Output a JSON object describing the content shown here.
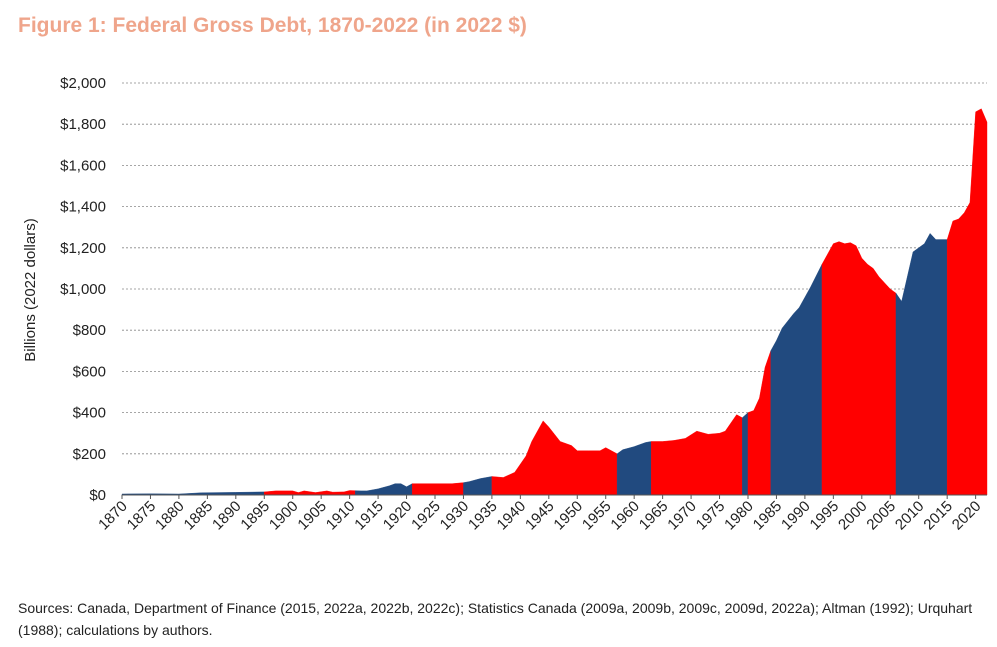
{
  "chart_data": {
    "type": "area",
    "title": "Figure 1: Federal Gross Debt, 1870-2022 (in 2022 $)",
    "xlabel": "",
    "ylabel": "Billions (2022 dollars)",
    "xlim": [
      1870,
      2022
    ],
    "ylim": [
      0,
      2000
    ],
    "yticks": [
      0,
      200,
      400,
      600,
      800,
      1000,
      1200,
      1400,
      1600,
      1800,
      2000
    ],
    "ytick_labels": [
      "$0",
      "$200",
      "$400",
      "$600",
      "$800",
      "$1,000",
      "$1,200",
      "$1,400",
      "$1,600",
      "$1,800",
      "$2,000"
    ],
    "xticks": [
      1870,
      1875,
      1880,
      1885,
      1890,
      1895,
      1900,
      1905,
      1910,
      1915,
      1920,
      1925,
      1930,
      1935,
      1940,
      1945,
      1950,
      1955,
      1960,
      1965,
      1970,
      1975,
      1980,
      1985,
      1990,
      1995,
      2000,
      2005,
      2010,
      2015,
      2020
    ],
    "grid": "horizontal-dashed",
    "legend": "none",
    "points": [
      [
        1870,
        5
      ],
      [
        1875,
        6
      ],
      [
        1880,
        5
      ],
      [
        1884,
        11
      ],
      [
        1890,
        13
      ],
      [
        1895,
        15
      ],
      [
        1897,
        20
      ],
      [
        1900,
        20
      ],
      [
        1901,
        12
      ],
      [
        1902,
        20
      ],
      [
        1904,
        12
      ],
      [
        1906,
        20
      ],
      [
        1907,
        14
      ],
      [
        1909,
        15
      ],
      [
        1910,
        22
      ],
      [
        1912,
        20
      ],
      [
        1913,
        20
      ],
      [
        1915,
        30
      ],
      [
        1917,
        45
      ],
      [
        1918,
        55
      ],
      [
        1919,
        55
      ],
      [
        1920,
        40
      ],
      [
        1921,
        55
      ],
      [
        1925,
        55
      ],
      [
        1928,
        55
      ],
      [
        1930,
        60
      ],
      [
        1931,
        65
      ],
      [
        1933,
        80
      ],
      [
        1935,
        90
      ],
      [
        1937,
        85
      ],
      [
        1939,
        110
      ],
      [
        1941,
        190
      ],
      [
        1942,
        260
      ],
      [
        1944,
        360
      ],
      [
        1945,
        330
      ],
      [
        1947,
        260
      ],
      [
        1949,
        240
      ],
      [
        1950,
        215
      ],
      [
        1952,
        215
      ],
      [
        1954,
        215
      ],
      [
        1955,
        230
      ],
      [
        1957,
        200
      ],
      [
        1958,
        220
      ],
      [
        1960,
        235
      ],
      [
        1962,
        255
      ],
      [
        1963,
        260
      ],
      [
        1965,
        260
      ],
      [
        1967,
        265
      ],
      [
        1969,
        275
      ],
      [
        1971,
        310
      ],
      [
        1973,
        295
      ],
      [
        1975,
        300
      ],
      [
        1976,
        310
      ],
      [
        1978,
        390
      ],
      [
        1979,
        375
      ],
      [
        1980,
        400
      ],
      [
        1981,
        410
      ],
      [
        1982,
        470
      ],
      [
        1983,
        620
      ],
      [
        1984,
        700
      ],
      [
        1985,
        750
      ],
      [
        1986,
        810
      ],
      [
        1988,
        880
      ],
      [
        1989,
        910
      ],
      [
        1990,
        960
      ],
      [
        1991,
        1010
      ],
      [
        1993,
        1120
      ],
      [
        1995,
        1220
      ],
      [
        1996,
        1230
      ],
      [
        1997,
        1220
      ],
      [
        1998,
        1225
      ],
      [
        1999,
        1210
      ],
      [
        2000,
        1150
      ],
      [
        2001,
        1120
      ],
      [
        2002,
        1100
      ],
      [
        2003,
        1060
      ],
      [
        2004,
        1030
      ],
      [
        2005,
        1000
      ],
      [
        2006,
        980
      ],
      [
        2007,
        940
      ],
      [
        2009,
        1180
      ],
      [
        2011,
        1220
      ],
      [
        2012,
        1270
      ],
      [
        2013,
        1240
      ],
      [
        2014,
        1240
      ],
      [
        2015,
        1240
      ],
      [
        2016,
        1330
      ],
      [
        2017,
        1340
      ],
      [
        2018,
        1370
      ],
      [
        2019,
        1420
      ],
      [
        2020,
        1860
      ],
      [
        2021,
        1875
      ],
      [
        2022,
        1810
      ]
    ],
    "segments": [
      {
        "start": 1870,
        "end": 1895,
        "party": "blue"
      },
      {
        "start": 1895,
        "end": 1911,
        "party": "red"
      },
      {
        "start": 1911,
        "end": 1921,
        "party": "blue"
      },
      {
        "start": 1921,
        "end": 1930,
        "party": "red"
      },
      {
        "start": 1930,
        "end": 1935,
        "party": "blue"
      },
      {
        "start": 1935,
        "end": 1957,
        "party": "red"
      },
      {
        "start": 1957,
        "end": 1963,
        "party": "blue"
      },
      {
        "start": 1963,
        "end": 1979,
        "party": "red"
      },
      {
        "start": 1979,
        "end": 1980,
        "party": "blue"
      },
      {
        "start": 1980,
        "end": 1984,
        "party": "red"
      },
      {
        "start": 1984,
        "end": 1993,
        "party": "blue"
      },
      {
        "start": 1993,
        "end": 2006,
        "party": "red"
      },
      {
        "start": 2006,
        "end": 2015,
        "party": "blue"
      },
      {
        "start": 2015,
        "end": 2022,
        "party": "red"
      }
    ],
    "colors": {
      "red": "#ff0000",
      "blue": "#214a7f",
      "title": "#efa58b",
      "grid": "#888888"
    }
  },
  "sources": "Sources: Canada, Department of Finance (2015, 2022a, 2022b, 2022c); Statistics Canada (2009a, 2009b, 2009c, 2009d, 2022a); Altman (1992); Urquhart (1988); calculations by authors."
}
